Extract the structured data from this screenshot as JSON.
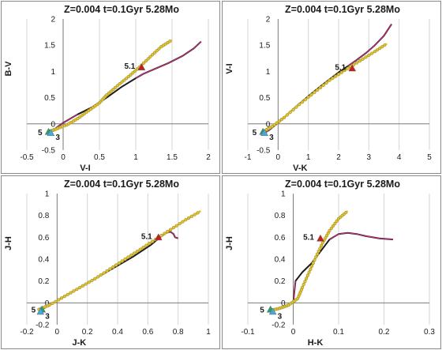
{
  "colors": {
    "model_line": "#1c1c1c",
    "model_magenta": "#c0307a",
    "track_yellow": "#e3c52a",
    "track_yellow_edge": "#9f8f3a",
    "marker_red": "#c81e1e",
    "marker_green": "#2e9c6a",
    "marker_blue": "#4aa8d8",
    "grid": "#d4d4d4",
    "axis": "#7a7a7a"
  },
  "chart_data": [
    {
      "type": "line",
      "title": "Z=0.004  t=0.1Gyr 5.28Mo",
      "xlabel": "V-I",
      "ylabel": "B-V",
      "xlim": [
        -0.5,
        2
      ],
      "ylim": [
        -0.5,
        2
      ],
      "xticks": [
        "-0.5",
        "0",
        "0.5",
        "1",
        "1.5",
        "2"
      ],
      "yticks": [
        "-0.5",
        "0",
        "0.5",
        "1",
        "1.5",
        "2"
      ],
      "grid": "vertical",
      "series": [
        {
          "role": "model",
          "x": [
            -0.17,
            -0.12,
            0.0,
            0.2,
            0.4,
            0.6,
            0.8,
            1.0,
            1.1,
            1.25,
            1.45,
            1.65,
            1.8,
            1.9
          ],
          "y": [
            -0.15,
            -0.1,
            0.02,
            0.18,
            0.32,
            0.5,
            0.7,
            0.87,
            0.95,
            1.04,
            1.16,
            1.3,
            1.44,
            1.57
          ]
        },
        {
          "role": "track",
          "x": [
            -0.2,
            -0.1,
            0.05,
            0.2,
            0.35,
            0.5,
            0.6,
            0.75,
            0.9,
            1.05,
            1.2,
            1.35,
            1.5
          ],
          "y": [
            -0.15,
            -0.1,
            -0.02,
            0.1,
            0.25,
            0.4,
            0.55,
            0.73,
            0.9,
            1.08,
            1.28,
            1.47,
            1.6
          ]
        }
      ],
      "markers": [
        {
          "shape": "triangle",
          "color": "red",
          "x": 1.08,
          "y": 1.08,
          "label": "5.1"
        },
        {
          "shape": "triangle",
          "color": "green",
          "x": -0.2,
          "y": -0.15,
          "label": "5"
        },
        {
          "shape": "triangle",
          "color": "blue",
          "x": -0.17,
          "y": -0.17,
          "label": "3"
        }
      ]
    },
    {
      "type": "line",
      "title": "Z=0.004  t=0.1Gyr 5.28Mo",
      "xlabel": "V-K",
      "ylabel": "V-I",
      "xlim": [
        -1,
        5
      ],
      "ylim": [
        -0.5,
        2
      ],
      "xticks": [
        "-1",
        "0",
        "1",
        "2",
        "3",
        "4",
        "5"
      ],
      "yticks": [
        "-0.5",
        "0",
        "0.5",
        "1",
        "1.5",
        "2"
      ],
      "grid": "vertical",
      "series": [
        {
          "role": "model",
          "x": [
            -0.45,
            -0.3,
            0.0,
            0.5,
            1.0,
            1.5,
            2.0,
            2.3,
            2.6,
            2.9,
            3.2,
            3.5,
            3.75
          ],
          "y": [
            -0.17,
            -0.12,
            0.02,
            0.28,
            0.53,
            0.76,
            0.98,
            1.1,
            1.22,
            1.35,
            1.5,
            1.68,
            1.9
          ]
        },
        {
          "role": "track",
          "x": [
            -0.5,
            -0.2,
            0.2,
            0.7,
            1.2,
            1.7,
            2.2,
            2.7,
            3.2,
            3.6
          ],
          "y": [
            -0.15,
            -0.05,
            0.12,
            0.37,
            0.6,
            0.83,
            1.02,
            1.2,
            1.38,
            1.53
          ]
        }
      ],
      "markers": [
        {
          "shape": "triangle",
          "color": "red",
          "x": 2.45,
          "y": 1.06,
          "label": "5.1"
        },
        {
          "shape": "triangle",
          "color": "green",
          "x": -0.5,
          "y": -0.15,
          "label": "5"
        },
        {
          "shape": "triangle",
          "color": "blue",
          "x": -0.45,
          "y": -0.17,
          "label": "3"
        }
      ]
    },
    {
      "type": "line",
      "title": "Z=0.004  t=0.1Gyr 5.28Mo",
      "xlabel": "J-K",
      "ylabel": "J-H",
      "xlim": [
        -0.2,
        1
      ],
      "ylim": [
        -0.2,
        1
      ],
      "xticks": [
        "-0.2",
        "0",
        "0.2",
        "0.4",
        "0.6",
        "0.8",
        "1"
      ],
      "yticks": [
        "-0.2",
        "0",
        "0.2",
        "0.4",
        "0.6",
        "0.8",
        "1"
      ],
      "grid": "vertical",
      "series": [
        {
          "role": "model",
          "x": [
            -0.1,
            -0.05,
            0.05,
            0.2,
            0.35,
            0.5,
            0.62,
            0.68,
            0.72,
            0.75,
            0.77,
            0.78,
            0.8
          ],
          "y": [
            -0.06,
            -0.02,
            0.06,
            0.18,
            0.3,
            0.42,
            0.53,
            0.6,
            0.64,
            0.65,
            0.63,
            0.6,
            0.59
          ]
        },
        {
          "role": "track",
          "x": [
            -0.12,
            -0.05,
            0.05,
            0.15,
            0.25,
            0.35,
            0.45,
            0.55,
            0.65,
            0.75,
            0.85,
            0.95
          ],
          "y": [
            -0.06,
            -0.02,
            0.06,
            0.14,
            0.22,
            0.31,
            0.4,
            0.49,
            0.58,
            0.67,
            0.76,
            0.84
          ]
        }
      ],
      "markers": [
        {
          "shape": "triangle",
          "color": "red",
          "x": 0.67,
          "y": 0.6,
          "label": "5.1"
        },
        {
          "shape": "triangle",
          "color": "green",
          "x": -0.1,
          "y": -0.06,
          "label": "5"
        },
        {
          "shape": "triangle",
          "color": "blue",
          "x": -0.11,
          "y": -0.08,
          "label": "3"
        }
      ]
    },
    {
      "type": "line",
      "title": "Z=0.004  t=0.1Gyr 5.28Mo",
      "xlabel": "H-K",
      "ylabel": "J-H",
      "xlim": [
        -0.1,
        0.3
      ],
      "ylim": [
        -0.2,
        1
      ],
      "xticks": [
        "-0.1",
        "0",
        "0.1",
        "0.2",
        "0.3"
      ],
      "yticks": [
        "-0.2",
        "0",
        "0.2",
        "0.4",
        "0.6",
        "0.8",
        "1"
      ],
      "grid": "vertical",
      "series": [
        {
          "role": "model",
          "x": [
            -0.04,
            -0.02,
            0.0,
            0.005,
            0.02,
            0.04,
            0.06,
            0.08,
            0.1,
            0.12,
            0.14,
            0.16,
            0.19,
            0.22
          ],
          "y": [
            -0.06,
            -0.03,
            0.0,
            0.2,
            0.28,
            0.36,
            0.47,
            0.58,
            0.63,
            0.64,
            0.63,
            0.61,
            0.59,
            0.58
          ]
        },
        {
          "role": "track",
          "x": [
            -0.05,
            -0.03,
            -0.01,
            0.01,
            0.02,
            0.035,
            0.05,
            0.065,
            0.08,
            0.1,
            0.12
          ],
          "y": [
            -0.07,
            -0.05,
            -0.02,
            0.04,
            0.14,
            0.28,
            0.42,
            0.55,
            0.66,
            0.77,
            0.84
          ]
        }
      ],
      "markers": [
        {
          "shape": "triangle",
          "color": "red",
          "x": 0.06,
          "y": 0.59,
          "label": "5.1"
        },
        {
          "shape": "triangle",
          "color": "green",
          "x": -0.05,
          "y": -0.06,
          "label": "5"
        },
        {
          "shape": "triangle",
          "color": "blue",
          "x": -0.045,
          "y": -0.08,
          "label": "3"
        }
      ]
    }
  ]
}
